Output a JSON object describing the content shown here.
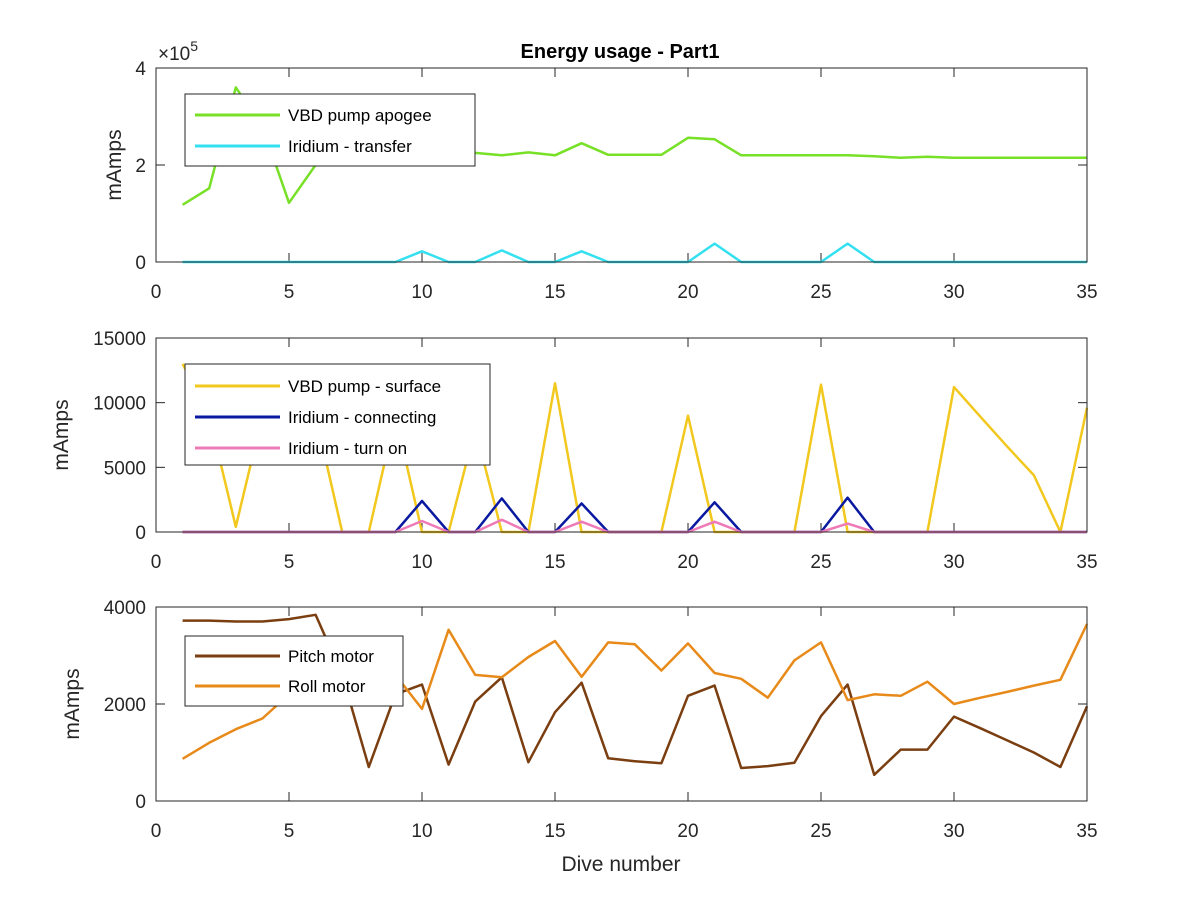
{
  "figure": {
    "title": "Energy usage - Part1",
    "xlabel": "Dive number"
  },
  "chart_data": [
    {
      "type": "line",
      "title": "Energy usage - Part1",
      "ylabel": "mAmps",
      "xlabel": "",
      "xlim": [
        0,
        35
      ],
      "ylim": [
        0,
        400000
      ],
      "xticks": [
        "0",
        "5",
        "10",
        "15",
        "20",
        "25",
        "30",
        "35"
      ],
      "yticks": [
        "0",
        "2",
        "4"
      ],
      "ytick_values": [
        0,
        200000,
        400000
      ],
      "exponent_label": "×10",
      "exponent_power": "5",
      "legend_position": "top-left",
      "grid": false,
      "x": [
        1,
        2,
        3,
        4,
        5,
        6,
        7,
        8,
        9,
        10,
        11,
        12,
        13,
        14,
        15,
        16,
        17,
        18,
        19,
        20,
        21,
        22,
        23,
        24,
        25,
        26,
        27,
        28,
        29,
        30,
        31,
        32,
        33,
        34,
        35
      ],
      "series": [
        {
          "name": "VBD pump apogee",
          "color": "#77e027",
          "values": [
            118000,
            152000,
            360000,
            280000,
            122000,
            200000,
            225000,
            235000,
            228000,
            228000,
            230000,
            225000,
            220000,
            226000,
            220000,
            245000,
            221000,
            221000,
            221000,
            256000,
            253000,
            220000,
            220000,
            220000,
            220000,
            220000,
            218000,
            215000,
            217000,
            215000,
            215000,
            215000,
            215000,
            215000,
            215000
          ]
        },
        {
          "name": "Iridium - transfer",
          "color": "#34e0f0",
          "values": [
            0,
            0,
            0,
            0,
            0,
            0,
            0,
            0,
            0,
            22000,
            0,
            0,
            24000,
            0,
            0,
            22000,
            0,
            0,
            0,
            0,
            38000,
            0,
            0,
            0,
            0,
            38000,
            0,
            0,
            0,
            0,
            0,
            0,
            0,
            0,
            0
          ]
        }
      ]
    },
    {
      "type": "line",
      "ylabel": "mAmps",
      "xlabel": "",
      "xlim": [
        0,
        35
      ],
      "ylim": [
        0,
        15000
      ],
      "xticks": [
        "0",
        "5",
        "10",
        "15",
        "20",
        "25",
        "30",
        "35"
      ],
      "yticks": [
        "0",
        "5000",
        "10000",
        "15000"
      ],
      "ytick_values": [
        0,
        5000,
        10000,
        15000
      ],
      "legend_position": "top-left",
      "grid": false,
      "x": [
        1,
        2,
        3,
        4,
        5,
        6,
        7,
        8,
        9,
        10,
        11,
        12,
        13,
        14,
        15,
        16,
        17,
        18,
        19,
        20,
        21,
        22,
        23,
        24,
        25,
        26,
        27,
        28,
        29,
        30,
        31,
        32,
        33,
        34,
        35
      ],
      "series": [
        {
          "name": "VBD pump - surface",
          "color": "#f2c81e",
          "values": [
            13000,
            9000,
            400,
            9000,
            9000,
            9000,
            0,
            0,
            9000,
            0,
            0,
            8000,
            0,
            0,
            11500,
            0,
            0,
            0,
            0,
            9000,
            0,
            0,
            0,
            0,
            11400,
            0,
            0,
            0,
            0,
            11200,
            8900,
            6600,
            4400,
            0,
            9600
          ]
        },
        {
          "name": "Iridium - connecting",
          "color": "#0a1aa0",
          "values": [
            0,
            0,
            0,
            0,
            0,
            0,
            0,
            0,
            0,
            2400,
            0,
            0,
            2600,
            0,
            0,
            2200,
            0,
            0,
            0,
            0,
            2300,
            0,
            0,
            0,
            0,
            2650,
            0,
            0,
            0,
            0,
            0,
            0,
            0,
            0,
            0
          ]
        },
        {
          "name": "Iridium - turn on",
          "color": "#ee7ab8",
          "values": [
            0,
            0,
            0,
            0,
            0,
            0,
            0,
            0,
            0,
            850,
            0,
            0,
            950,
            0,
            0,
            800,
            0,
            0,
            0,
            0,
            800,
            0,
            0,
            0,
            0,
            650,
            0,
            0,
            0,
            0,
            0,
            0,
            0,
            0,
            0
          ]
        }
      ]
    },
    {
      "type": "line",
      "ylabel": "mAmps",
      "xlabel": "Dive number",
      "xlim": [
        0,
        35
      ],
      "ylim": [
        0,
        4000
      ],
      "xticks": [
        "0",
        "5",
        "10",
        "15",
        "20",
        "25",
        "30",
        "35"
      ],
      "yticks": [
        "0",
        "2000",
        "4000"
      ],
      "ytick_values": [
        0,
        2000,
        4000
      ],
      "legend_position": "top-left",
      "grid": false,
      "x": [
        1,
        2,
        3,
        4,
        5,
        6,
        7,
        8,
        9,
        10,
        11,
        12,
        13,
        14,
        15,
        16,
        17,
        18,
        19,
        20,
        21,
        22,
        23,
        24,
        25,
        26,
        27,
        28,
        29,
        30,
        31,
        32,
        33,
        34,
        35
      ],
      "series": [
        {
          "name": "Pitch motor",
          "color": "#7a3e10",
          "values": [
            3720,
            3720,
            3700,
            3700,
            3750,
            3840,
            2600,
            700,
            2200,
            2400,
            750,
            2050,
            2550,
            800,
            1830,
            2440,
            880,
            820,
            780,
            2170,
            2380,
            680,
            720,
            790,
            1750,
            2400,
            540,
            1060,
            1060,
            1740,
            1500,
            1250,
            1000,
            700,
            1950
          ]
        },
        {
          "name": "Roll motor",
          "color": "#e88a1a",
          "values": [
            870,
            1200,
            1480,
            1700,
            2200,
            2700,
            2800,
            2700,
            2600,
            1900,
            3530,
            2600,
            2550,
            2970,
            3300,
            2560,
            3270,
            3230,
            2690,
            3250,
            2640,
            2520,
            2130,
            2900,
            3270,
            2080,
            2200,
            2170,
            2460,
            2000,
            2130,
            2250,
            2380,
            2500,
            3650
          ]
        }
      ]
    }
  ]
}
